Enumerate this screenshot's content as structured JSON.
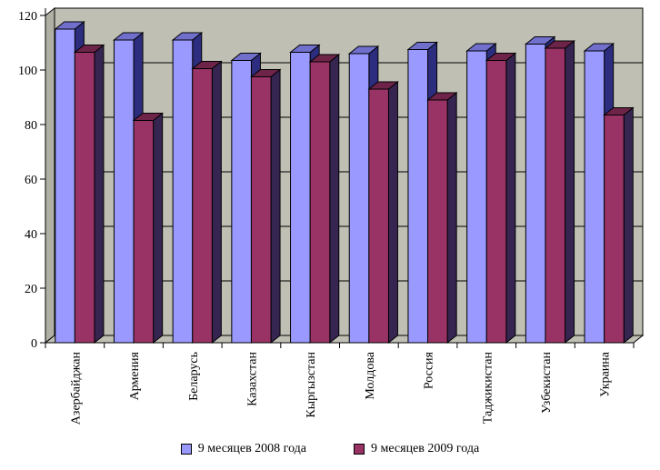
{
  "chart_data": {
    "type": "bar",
    "style_3d": true,
    "title": "",
    "xlabel": "",
    "ylabel": "",
    "categories": [
      "Азербайджан",
      "Армения",
      "Беларусь",
      "Казахстан",
      "Кыргызстан",
      "Молдова",
      "Россия",
      "Таджикистан",
      "Узбекистан",
      "Украина"
    ],
    "series": [
      {
        "name": "9 месяцев 2008 года",
        "color": "#9999FF",
        "color_top": "#7070CC",
        "color_side": "#2D2D80",
        "values": [
          115,
          111,
          111,
          103.5,
          106.5,
          106,
          107.5,
          107,
          109.5,
          107
        ]
      },
      {
        "name": "9 месяцев 2009 года",
        "color": "#993366",
        "color_top": "#6E2448",
        "color_side": "#372551",
        "values": [
          106.5,
          81.5,
          100.5,
          97.5,
          103,
          93,
          89,
          103.5,
          108,
          83.5
        ]
      }
    ],
    "ylim": [
      0,
      120
    ],
    "ytick_step": 20,
    "yticks": [
      0,
      20,
      40,
      60,
      80,
      100,
      120
    ],
    "grid": "horizontal",
    "legend_position": "bottom",
    "wall_color": "#BFBFB4",
    "side_wall_color": "#B0B0A5",
    "floor_color": "#BFBFB4",
    "axis_color": "#000000",
    "background": "#FFFFFF"
  }
}
